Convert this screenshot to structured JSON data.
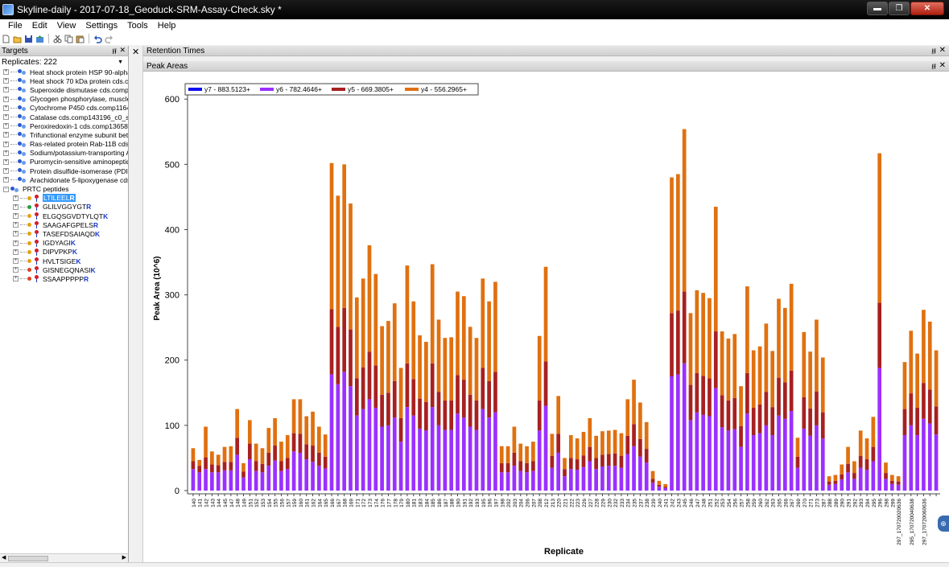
{
  "window": {
    "title": "Skyline-daily - 2017-07-18_Geoduck-SRM-Assay-Check.sky *",
    "min_label": "▬",
    "max_label": "❐",
    "close_label": "✕"
  },
  "menu": [
    "File",
    "Edit",
    "View",
    "Settings",
    "Tools",
    "Help"
  ],
  "targets": {
    "title": "Targets",
    "pin": "Ͱ",
    "close": "✕",
    "replicates_label": "Replicates:",
    "replicates_value": "222",
    "proteins": [
      "Heat shock protein HSP 90-alpha cds.",
      "Heat shock 70 kDa protein cds.comp1",
      "Superoxide dismutase cds.comp12852",
      "Glycogen phosphorylase, muscle form",
      "Cytochrome P450 cds.comp116478_c",
      "Catalase cds.comp143196_c0_seq1m",
      "Peroxiredoxin-1 cds.comp136585_c1_",
      "Trifunctional enzyme subunit beta, mito",
      "Ras-related protein Rab-11B cds.comp",
      "Sodium/potassium-transporting ATPase",
      "Puromycin-sensitive aminopeptidase c",
      "Protein disulfide-isomerase (PDI) cds.c",
      "Arachidonate 5-lipoxygenase cds.comp"
    ],
    "group_label": "PRTC peptides",
    "peptides": [
      {
        "seq": "LTILEEL",
        "end": "R",
        "dot": "#e8a010",
        "selected": true
      },
      {
        "seq": "GLILVGGYGT",
        "end": "R",
        "dot": "#20a040",
        "selected": false
      },
      {
        "seq": "ELGQSGVDTYLQT",
        "end": "K",
        "dot": "#e8a010",
        "selected": false
      },
      {
        "seq": "SAAGAFGPELS",
        "end": "R",
        "dot": "#e8a010",
        "selected": false
      },
      {
        "seq": "TASEFDSAIAQD",
        "end": "K",
        "dot": "#e8a010",
        "selected": false
      },
      {
        "seq": "IGDYAGI",
        "end": "K",
        "dot": "#e8a010",
        "selected": false
      },
      {
        "seq": "DIPVPKP",
        "end": "K",
        "dot": "#e8a010",
        "selected": false
      },
      {
        "seq": "HVLTSIGE",
        "end": "K",
        "dot": "#e8a010",
        "selected": false
      },
      {
        "seq": "GISNEGQNASI",
        "end": "K",
        "dot": "#e04020",
        "selected": false
      },
      {
        "seq": "SSAAPPPPP",
        "end": "R",
        "dot": "#e04020",
        "selected": false
      }
    ]
  },
  "retention_times": {
    "title": "Retention Times"
  },
  "peak_areas": {
    "title": "Peak Areas",
    "pin": "Ͱ",
    "close": "✕"
  },
  "chart_data": {
    "type": "bar",
    "stacked": true,
    "xlabel": "Replicate",
    "ylabel": "Peak Area (10^6)",
    "ylim": [
      0,
      620
    ],
    "yticks": [
      0,
      100,
      200,
      300,
      400,
      500,
      600
    ],
    "legend_position": "top-left",
    "series": [
      {
        "name": "y7 - 883.5123+",
        "color": "#1010f0"
      },
      {
        "name": "y6 - 782.4646+",
        "color": "#9b30ff"
      },
      {
        "name": "y5 - 669.3805+",
        "color": "#a82020"
      },
      {
        "name": "y4 - 556.2965+",
        "color": "#e07010"
      }
    ],
    "totals": [
      65,
      47,
      98,
      60,
      55,
      67,
      68,
      125,
      42,
      108,
      72,
      65,
      96,
      111,
      75,
      85,
      140,
      140,
      114,
      121,
      98,
      86,
      502,
      452,
      500,
      440,
      296,
      325,
      376,
      332,
      252,
      260,
      287,
      188,
      345,
      290,
      238,
      228,
      347,
      262,
      234,
      235,
      305,
      298,
      251,
      234,
      325,
      290,
      320,
      68,
      68,
      98,
      72,
      68,
      75,
      237,
      343,
      87,
      145,
      50,
      85,
      80,
      90,
      111,
      84,
      91,
      92,
      93,
      88,
      140,
      170,
      135,
      105,
      30,
      15,
      10,
      480,
      485,
      554,
      272,
      307,
      303,
      295,
      435,
      244,
      233,
      240,
      160,
      313,
      215,
      221,
      256,
      214,
      294,
      280,
      317,
      81,
      243,
      213,
      262,
      204,
      22,
      24,
      40,
      67,
      45,
      92,
      80,
      113,
      517,
      43,
      24,
      22,
      197,
      245,
      210,
      277,
      259,
      215
    ],
    "y6_values": [
      33,
      28,
      33,
      28,
      28,
      31,
      31,
      55,
      20,
      48,
      30,
      28,
      38,
      46,
      30,
      33,
      60,
      58,
      48,
      44,
      38,
      34,
      178,
      163,
      182,
      160,
      115,
      125,
      140,
      127,
      98,
      100,
      112,
      75,
      128,
      115,
      95,
      92,
      128,
      100,
      93,
      93,
      118,
      112,
      98,
      93,
      125,
      112,
      120,
      28,
      28,
      38,
      30,
      28,
      30,
      92,
      130,
      35,
      58,
      22,
      33,
      32,
      36,
      45,
      33,
      37,
      38,
      38,
      35,
      56,
      68,
      52,
      43,
      12,
      6,
      4,
      175,
      178,
      195,
      108,
      120,
      116,
      114,
      157,
      97,
      92,
      94,
      67,
      118,
      85,
      88,
      100,
      85,
      115,
      110,
      122,
      35,
      95,
      84,
      100,
      80,
      9,
      10,
      17,
      28,
      18,
      35,
      32,
      45,
      188,
      18,
      10,
      9,
      85,
      100,
      85,
      110,
      103,
      86
    ],
    "y5_values": [
      12,
      10,
      18,
      12,
      11,
      13,
      13,
      26,
      9,
      24,
      15,
      13,
      20,
      23,
      15,
      17,
      28,
      29,
      23,
      25,
      20,
      18,
      100,
      88,
      98,
      87,
      57,
      64,
      73,
      65,
      49,
      50,
      56,
      36,
      67,
      56,
      46,
      44,
      67,
      51,
      45,
      45,
      59,
      58,
      49,
      45,
      63,
      56,
      62,
      14,
      14,
      20,
      15,
      14,
      15,
      46,
      68,
      18,
      29,
      11,
      17,
      16,
      18,
      22,
      17,
      18,
      18,
      19,
      18,
      28,
      34,
      27,
      21,
      6,
      3,
      2,
      97,
      98,
      110,
      54,
      60,
      60,
      58,
      87,
      49,
      46,
      48,
      32,
      62,
      42,
      44,
      51,
      43,
      58,
      56,
      62,
      17,
      48,
      42,
      52,
      40,
      5,
      5,
      8,
      13,
      9,
      18,
      16,
      22,
      100,
      9,
      5,
      5,
      40,
      49,
      42,
      55,
      52,
      43
    ],
    "x_tick_labels": [
      "140",
      "141",
      "142",
      "143",
      "144",
      "145",
      "147",
      "148",
      "149",
      "151",
      "152",
      "153",
      "154",
      "155",
      "156",
      "157",
      "159",
      "160",
      "161",
      "162",
      "164",
      "165",
      "166",
      "167",
      "168",
      "169",
      "171",
      "172",
      "173",
      "174",
      "176",
      "177",
      "178",
      "179",
      "180",
      "181",
      "183",
      "184",
      "185",
      "186",
      "187",
      "188",
      "190",
      "191",
      "192",
      "193",
      "195",
      "196",
      "197",
      "198",
      "202",
      "203",
      "204",
      "206",
      "207",
      "208",
      "212",
      "213",
      "220",
      "221",
      "222",
      "223",
      "226",
      "227",
      "228",
      "229",
      "230",
      "232",
      "233",
      "234",
      "235",
      "237",
      "238",
      "239",
      "240",
      "241",
      "242",
      "243",
      "245",
      "246",
      "247",
      "248",
      "251",
      "252",
      "253",
      "254",
      "256",
      "257",
      "258",
      "259",
      "260",
      "262",
      "263",
      "265",
      "266",
      "267",
      "269",
      "270",
      "271",
      "273",
      "287",
      "288",
      "289",
      "290",
      "291",
      "292",
      "293",
      "294",
      "295",
      "296",
      "298",
      "299",
      "297_170720020636",
      "",
      "295_170720040638",
      "",
      "297_170720060636",
      ""
    ]
  }
}
